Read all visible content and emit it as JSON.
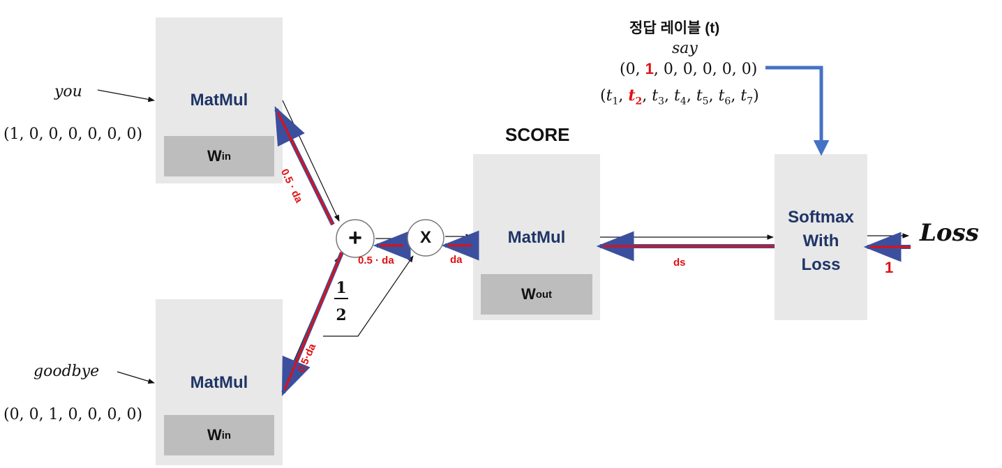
{
  "inputs": {
    "top_word": "you",
    "top_vector": "(1, 0, 0, 0, 0, 0, 0)",
    "bottom_word": "goodbye",
    "bottom_vector": "(0, 0, 1, 0, 0, 0, 0)"
  },
  "layers": {
    "matmul_label": "MatMul",
    "win_main": "W",
    "win_sub": "in",
    "wout_main": "W",
    "wout_sub": "out",
    "score_title": "SCORE",
    "softmax_line1": "Softmax",
    "softmax_line2": "With",
    "softmax_line3": "Loss",
    "loss_label": "Loss"
  },
  "nodes": {
    "add_symbol": "+",
    "mul_symbol": "X",
    "half_num": "1",
    "half_den": "2"
  },
  "label_header": {
    "title": "정답 레이블 (t)",
    "word": "say",
    "vector_start": "(0, ",
    "vector_hot": "1",
    "vector_end": ", 0, 0, 0, 0, 0)",
    "t1": "t",
    "t1_sub": "1",
    "t2": "t",
    "t2_sub": "2",
    "t3": "t",
    "t3_sub": "3",
    "t4": "t",
    "t4_sub": "4",
    "t5": "t",
    "t5_sub": "5",
    "t6": "t",
    "t6_sub": "6",
    "t7": "t",
    "t7_sub": "7"
  },
  "gradients": {
    "top_branch": "0.5 · da",
    "bottom_branch": "0.5·da",
    "add_to_mul": "0.5 · da",
    "mul_to_score": "da",
    "score_to_softmax": "ds",
    "loss_grad": "1"
  },
  "colors": {
    "box_fill": "#e8e8e8",
    "inner_fill": "#bdbdbd",
    "matmul_text": "#1f3566",
    "gradient_red": "#e01010",
    "gradient_blue": "#3b4f9e",
    "label_arrow": "#4472c4"
  }
}
